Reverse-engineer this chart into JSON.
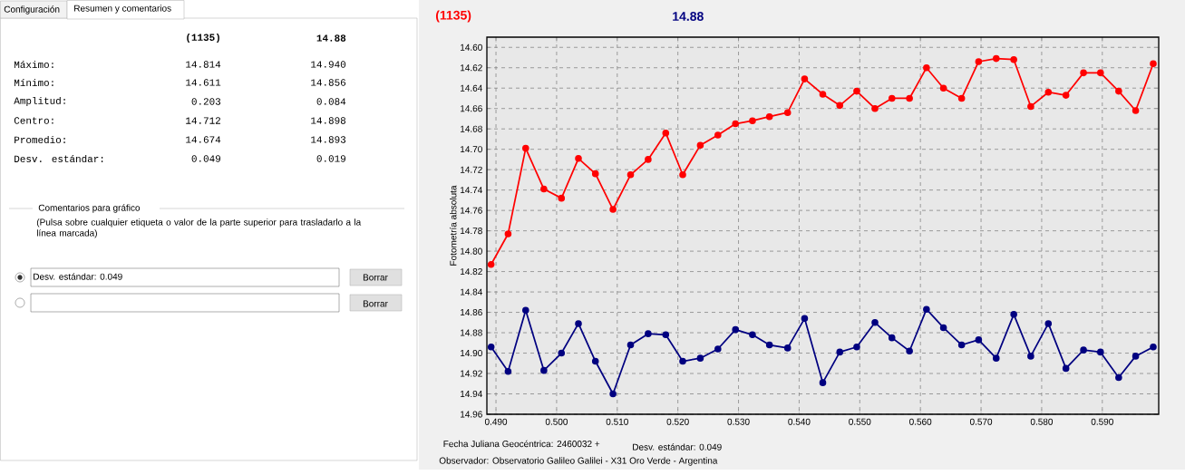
{
  "chart_data": {
    "type": "line",
    "xlabel": "Fecha Juliana Geocéntrica: 2460032 +",
    "ylabel": "Fotometría absoluta",
    "x": [
      0.4892,
      0.492,
      0.4949,
      0.4979,
      0.5008,
      0.5036,
      0.5064,
      0.5093,
      0.5122,
      0.5151,
      0.518,
      0.5208,
      0.5237,
      0.5266,
      0.5295,
      0.5323,
      0.5351,
      0.5381,
      0.5409,
      0.5439,
      0.5467,
      0.5495,
      0.5525,
      0.5553,
      0.5582,
      0.561,
      0.5638,
      0.5668,
      0.5696,
      0.5725,
      0.5754,
      0.5782,
      0.5811,
      0.584,
      0.5869,
      0.5897,
      0.5927,
      0.5955,
      0.5984
    ],
    "series": [
      {
        "name": "(1135)",
        "color": "#ff0000",
        "values": [
          14.813,
          14.783,
          14.699,
          14.739,
          14.748,
          14.709,
          14.724,
          14.759,
          14.725,
          14.71,
          14.684,
          14.725,
          14.696,
          14.686,
          14.675,
          14.672,
          14.668,
          14.664,
          14.631,
          14.646,
          14.657,
          14.643,
          14.66,
          14.65,
          14.65,
          14.62,
          14.64,
          14.65,
          14.614,
          14.611,
          14.612,
          14.658,
          14.644,
          14.647,
          14.625,
          14.625,
          14.643,
          14.662,
          14.616
        ]
      },
      {
        "name": "14.88",
        "color": "#000080",
        "values": [
          14.894,
          14.918,
          14.858,
          14.917,
          14.9,
          14.871,
          14.908,
          14.94,
          14.892,
          14.881,
          14.882,
          14.908,
          14.905,
          14.896,
          14.877,
          14.882,
          14.892,
          14.895,
          14.866,
          14.929,
          14.899,
          14.894,
          14.87,
          14.885,
          14.898,
          14.857,
          14.875,
          14.892,
          14.887,
          14.905,
          14.862,
          14.903,
          14.871,
          14.915,
          14.897,
          14.899,
          14.924,
          14.903,
          14.894
        ]
      }
    ],
    "xlim": [
      0.4885,
      0.5993
    ],
    "ylim": [
      14.96,
      14.59
    ],
    "xticks": [
      {
        "value": 0.49,
        "label": "0.490"
      },
      {
        "value": 0.5,
        "label": "0.500"
      },
      {
        "value": 0.51,
        "label": "0.510"
      },
      {
        "value": 0.52,
        "label": "0.520"
      },
      {
        "value": 0.53,
        "label": "0.530"
      },
      {
        "value": 0.54,
        "label": "0.540"
      },
      {
        "value": 0.55,
        "label": "0.550"
      },
      {
        "value": 0.56,
        "label": "0.560"
      },
      {
        "value": 0.57,
        "label": "0.570"
      },
      {
        "value": 0.58,
        "label": "0.580"
      },
      {
        "value": 0.59,
        "label": "0.590"
      }
    ],
    "yticks": [
      {
        "value": 14.6,
        "label": "14.60"
      },
      {
        "value": 14.62,
        "label": "14.62"
      },
      {
        "value": 14.64,
        "label": "14.64"
      },
      {
        "value": 14.66,
        "label": "14.66"
      },
      {
        "value": 14.68,
        "label": "14.68"
      },
      {
        "value": 14.7,
        "label": "14.70"
      },
      {
        "value": 14.72,
        "label": "14.72"
      },
      {
        "value": 14.74,
        "label": "14.74"
      },
      {
        "value": 14.76,
        "label": "14.76"
      },
      {
        "value": 14.78,
        "label": "14.78"
      },
      {
        "value": 14.8,
        "label": "14.80"
      },
      {
        "value": 14.82,
        "label": "14.82"
      },
      {
        "value": 14.84,
        "label": "14.84"
      },
      {
        "value": 14.86,
        "label": "14.86"
      },
      {
        "value": 14.88,
        "label": "14.88"
      },
      {
        "value": 14.9,
        "label": "14.90"
      },
      {
        "value": 14.92,
        "label": "14.92"
      },
      {
        "value": 14.94,
        "label": "14.94"
      },
      {
        "value": 14.96,
        "label": "14.96"
      }
    ],
    "grid": true,
    "marker": "circle",
    "line_style": "solid",
    "annotations": [
      "Configuración",
      "Resumen y comentarios",
      "(1135)",
      "14.88",
      "Máximo:",
      "14.814",
      "14.940",
      "Mínimo:",
      "14.611",
      "14.856",
      "Amplitud:",
      "0.203",
      "0.084",
      "Centro:",
      "14.712",
      "14.898",
      "Promedio:",
      "14.674",
      "14.893",
      "Desv. estándar:",
      "0.049",
      "0.019",
      "Comentarios para gráfico",
      "(Pulsa sobre cualquier etiqueta o valor de la parte superior para trasladarlo a la línea marcada)",
      "Desv. estándar: 0.049",
      "Borrar",
      "Borrar",
      "Desv. estándar: 0.049",
      "Observador: Observatorio Galileo Galilei - X31 Oro Verde - Argentina"
    ]
  }
}
